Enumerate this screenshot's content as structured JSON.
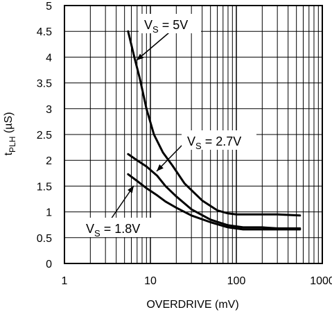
{
  "chart_data": {
    "type": "line",
    "title": "",
    "xlabel": "OVERDRIVE (mV)",
    "ylabel": {
      "main": "t",
      "sub": "PLH",
      "suffix": " (µS)"
    },
    "xscale": "log",
    "xlim": [
      1,
      1000
    ],
    "ylim": [
      0,
      5
    ],
    "grid": true,
    "xtick_labels": [
      "1",
      "10",
      "100",
      "1000"
    ],
    "ytick_labels": [
      "0",
      "0.5",
      "1",
      "1.5",
      "2",
      "2.5",
      "3",
      "3.5",
      "4",
      "4.5",
      "5"
    ],
    "series": [
      {
        "name": "VS = 5V",
        "x": [
          5.5,
          6.5,
          7.5,
          9,
          11,
          14,
          18,
          25,
          40,
          60,
          80,
          100,
          150,
          300,
          550
        ],
        "y": [
          4.5,
          4.0,
          3.6,
          3.0,
          2.5,
          2.15,
          1.9,
          1.55,
          1.22,
          1.03,
          0.97,
          0.95,
          0.95,
          0.95,
          0.93
        ]
      },
      {
        "name": "VS = 2.7V",
        "x": [
          5.5,
          7,
          9,
          12,
          15,
          20,
          30,
          50,
          80,
          120,
          200,
          300,
          550
        ],
        "y": [
          2.12,
          2.0,
          1.88,
          1.7,
          1.5,
          1.3,
          1.05,
          0.85,
          0.74,
          0.7,
          0.7,
          0.68,
          0.68
        ]
      },
      {
        "name": "VS = 1.8V",
        "x": [
          5.5,
          7,
          9,
          12,
          15,
          20,
          30,
          50,
          80,
          120,
          200,
          300,
          550
        ],
        "y": [
          1.73,
          1.6,
          1.46,
          1.32,
          1.2,
          1.08,
          0.93,
          0.8,
          0.7,
          0.66,
          0.66,
          0.66,
          0.66
        ]
      }
    ],
    "annotations": [
      {
        "text_main": "V",
        "text_sub": "S",
        "text_rest": " = 5V"
      },
      {
        "text_main": "V",
        "text_sub": "S",
        "text_rest": " = 2.7V"
      },
      {
        "text_main": "V",
        "text_sub": "S",
        "text_rest": " = 1.8V"
      }
    ]
  }
}
